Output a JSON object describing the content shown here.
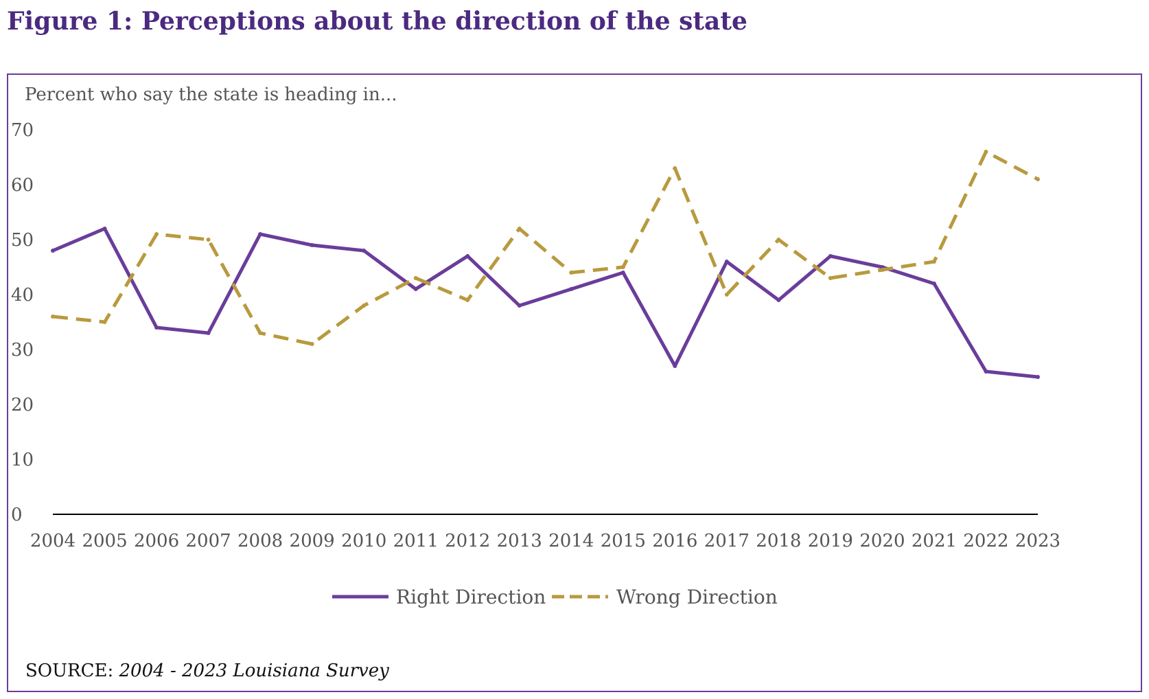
{
  "figure_title": "Figure 1: Perceptions about the direction of the state",
  "source_label": "SOURCE: ",
  "source_text": "2004 - 2023 Louisiana Survey",
  "colors": {
    "accent": "#4B2A80",
    "frame": "#6A3D9A",
    "right": "#6A3D9A",
    "wrong": "#B89A3E",
    "axis": "#000000"
  },
  "chart_data": {
    "type": "line",
    "subtitle": "Percent who say the state is heading in...",
    "categories": [
      "2004",
      "2005",
      "2006",
      "2007",
      "2008",
      "2009",
      "2010",
      "2011",
      "2012",
      "2013",
      "2014",
      "2015",
      "2016",
      "2017",
      "2018",
      "2019",
      "2020",
      "2021",
      "2022",
      "2023"
    ],
    "ylim": [
      0,
      70
    ],
    "yticks": [
      0,
      10,
      20,
      30,
      40,
      50,
      60,
      70
    ],
    "grid": false,
    "legend_position": "bottom",
    "series": [
      {
        "name": "Right Direction",
        "style": "solid",
        "values": [
          48,
          52,
          34,
          33,
          51,
          49,
          48,
          41,
          47,
          38,
          41,
          44,
          27,
          46,
          39,
          47,
          45,
          42,
          26,
          25
        ]
      },
      {
        "name": "Wrong Direction",
        "style": "dashed",
        "values": [
          36,
          35,
          51,
          50,
          33,
          31,
          38,
          43,
          39,
          52,
          44,
          45,
          63,
          40,
          50,
          43,
          44.5,
          46,
          66,
          61
        ]
      }
    ]
  }
}
